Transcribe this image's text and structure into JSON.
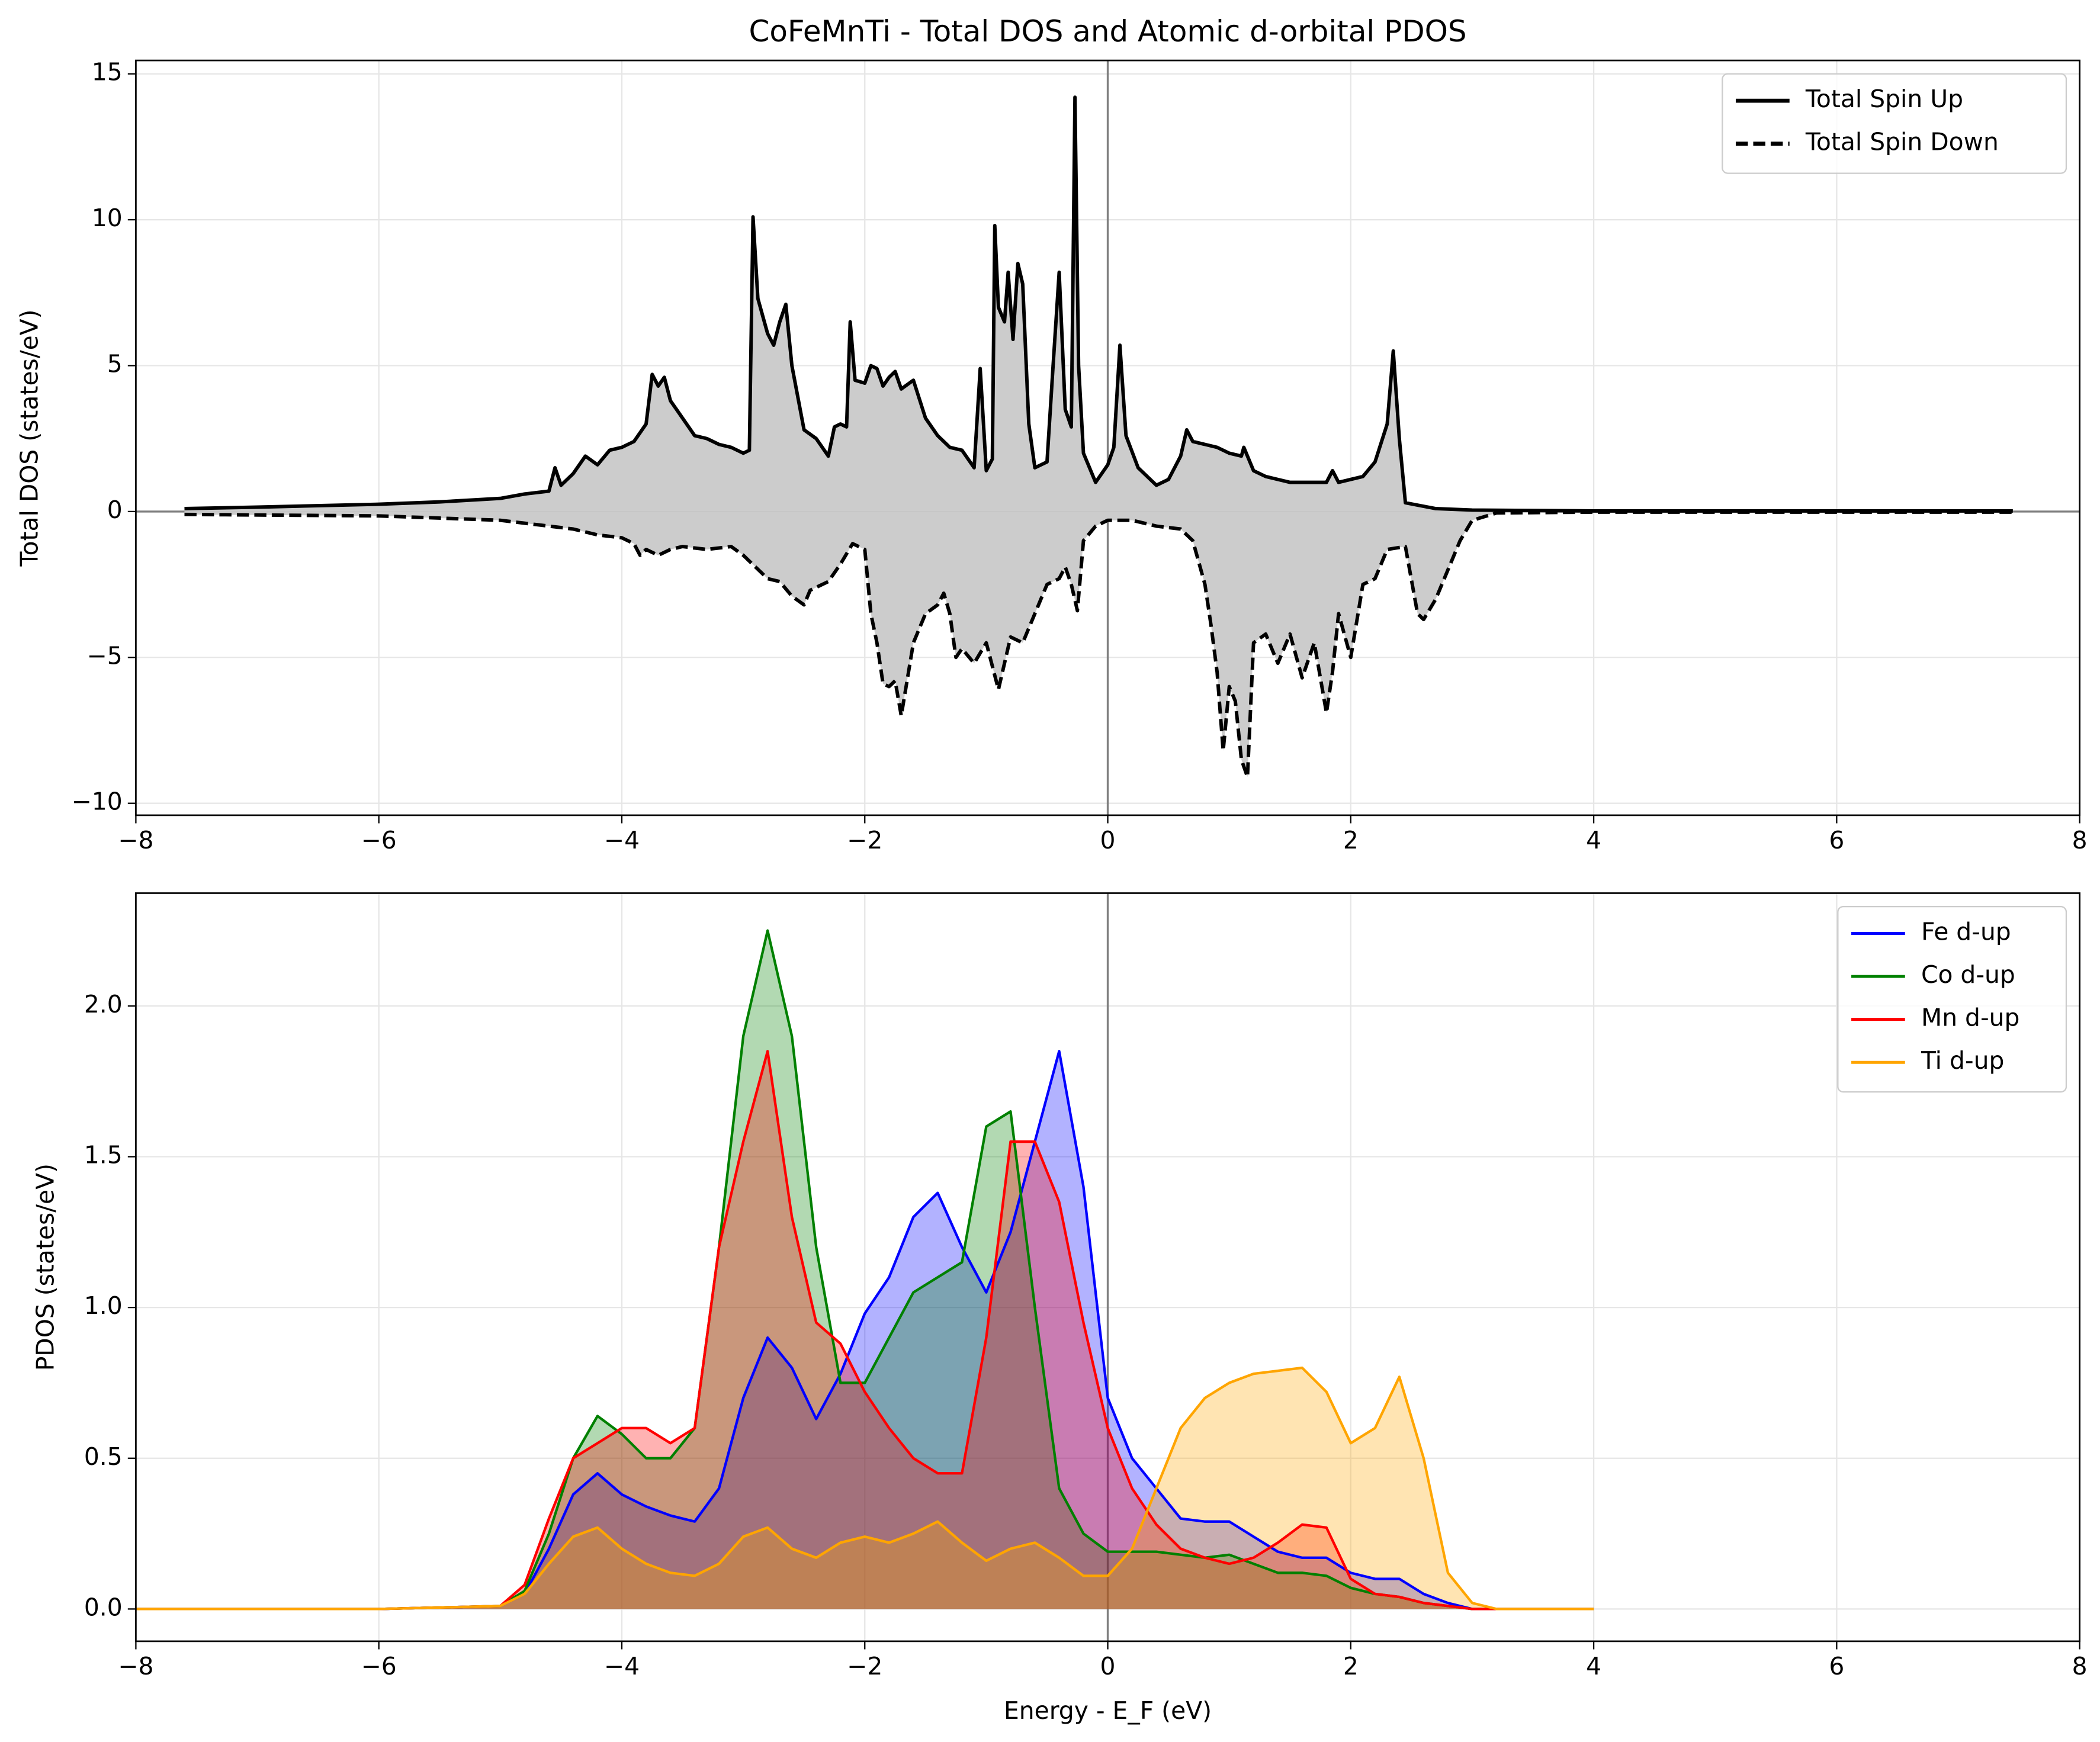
{
  "chart_data": [
    {
      "type": "line",
      "title": "CoFeMnTi - Total DOS and Atomic d-orbital PDOS",
      "ylabel": "Total DOS (states/eV)",
      "xlim": [
        -8,
        8
      ],
      "ylim": [
        -10.41,
        15.46
      ],
      "xticks": [
        {
          "value": -8,
          "label": "−8"
        },
        {
          "value": -6,
          "label": "−6"
        },
        {
          "value": -4,
          "label": "−4"
        },
        {
          "value": -2,
          "label": "−2"
        },
        0,
        2,
        4,
        6,
        8
      ],
      "yticks": [
        {
          "value": -10,
          "label": "−10"
        },
        {
          "value": -5,
          "label": "−5"
        },
        0,
        5,
        10,
        15
      ],
      "grid": true,
      "legend": "upper right",
      "axvline": 0,
      "axhline": 0,
      "fill": true,
      "fill_color": "#cccccc",
      "series": [
        {
          "name": "Total Spin Up",
          "color": "#000000",
          "dashed": false,
          "x": [
            -7.6,
            -7,
            -6,
            -5.5,
            -5,
            -4.8,
            -4.6,
            -4.55,
            -4.5,
            -4.4,
            -4.3,
            -4.2,
            -4.1,
            -4.0,
            -3.9,
            -3.8,
            -3.75,
            -3.7,
            -3.65,
            -3.6,
            -3.5,
            -3.4,
            -3.3,
            -3.2,
            -3.1,
            -3.0,
            -2.95,
            -2.92,
            -2.88,
            -2.8,
            -2.75,
            -2.7,
            -2.65,
            -2.6,
            -2.5,
            -2.4,
            -2.3,
            -2.25,
            -2.2,
            -2.15,
            -2.12,
            -2.08,
            -2.0,
            -1.95,
            -1.9,
            -1.85,
            -1.8,
            -1.75,
            -1.7,
            -1.6,
            -1.5,
            -1.4,
            -1.3,
            -1.2,
            -1.1,
            -1.05,
            -1.0,
            -0.95,
            -0.93,
            -0.9,
            -0.85,
            -0.82,
            -0.78,
            -0.74,
            -0.7,
            -0.65,
            -0.6,
            -0.5,
            -0.45,
            -0.4,
            -0.35,
            -0.3,
            -0.27,
            -0.24,
            -0.2,
            -0.1,
            0,
            0.05,
            0.1,
            0.15,
            0.25,
            0.4,
            0.5,
            0.6,
            0.65,
            0.7,
            0.8,
            0.9,
            1.0,
            1.1,
            1.12,
            1.2,
            1.3,
            1.5,
            1.7,
            1.8,
            1.85,
            1.9,
            2.1,
            2.2,
            2.3,
            2.35,
            2.4,
            2.45,
            2.7,
            3.0,
            4,
            7.45
          ],
          "values": [
            0.1,
            0.15,
            0.25,
            0.33,
            0.45,
            0.6,
            0.7,
            1.5,
            0.9,
            1.3,
            1.9,
            1.6,
            2.1,
            2.2,
            2.4,
            3.0,
            4.7,
            4.3,
            4.6,
            3.8,
            3.2,
            2.6,
            2.5,
            2.3,
            2.2,
            2.0,
            2.1,
            10.1,
            7.3,
            6.1,
            5.7,
            6.5,
            7.1,
            5.0,
            2.8,
            2.5,
            1.9,
            2.9,
            3.0,
            2.9,
            6.5,
            4.5,
            4.4,
            5.0,
            4.9,
            4.3,
            4.6,
            4.8,
            4.2,
            4.5,
            3.2,
            2.6,
            2.2,
            2.1,
            1.5,
            4.9,
            1.4,
            1.8,
            9.8,
            7.0,
            6.5,
            8.2,
            5.9,
            8.5,
            7.8,
            3.0,
            1.5,
            1.7,
            5.0,
            8.2,
            3.5,
            2.9,
            14.2,
            5.0,
            2.0,
            1.0,
            1.6,
            2.2,
            5.7,
            2.6,
            1.5,
            0.9,
            1.1,
            1.9,
            2.8,
            2.4,
            2.3,
            2.2,
            2.0,
            1.9,
            2.2,
            1.4,
            1.2,
            1.0,
            1.0,
            1.0,
            1.4,
            1.0,
            1.2,
            1.7,
            3.0,
            5.5,
            2.5,
            0.3,
            0.1,
            0.05,
            0.02,
            0.02
          ]
        },
        {
          "name": "Total Spin Down",
          "color": "#000000",
          "dashed": true,
          "x": [
            -7.6,
            -6,
            -5,
            -4.7,
            -4.4,
            -4.2,
            -4.0,
            -3.9,
            -3.85,
            -3.8,
            -3.7,
            -3.6,
            -3.5,
            -3.3,
            -3.1,
            -3.0,
            -2.9,
            -2.8,
            -2.7,
            -2.6,
            -2.5,
            -2.45,
            -2.3,
            -2.2,
            -2.1,
            -2.0,
            -1.95,
            -1.9,
            -1.85,
            -1.8,
            -1.75,
            -1.7,
            -1.6,
            -1.5,
            -1.4,
            -1.35,
            -1.3,
            -1.25,
            -1.2,
            -1.1,
            -1.0,
            -0.9,
            -0.8,
            -0.7,
            -0.6,
            -0.5,
            -0.4,
            -0.35,
            -0.3,
            -0.25,
            -0.2,
            -0.1,
            0,
            0.2,
            0.4,
            0.6,
            0.7,
            0.8,
            0.85,
            0.9,
            0.95,
            1.0,
            1.05,
            1.1,
            1.15,
            1.2,
            1.3,
            1.4,
            1.5,
            1.6,
            1.7,
            1.8,
            1.85,
            1.9,
            2.0,
            2.1,
            2.2,
            2.3,
            2.45,
            2.55,
            2.6,
            2.7,
            2.8,
            2.9,
            3.0,
            3.2,
            4,
            7.45
          ],
          "values": [
            -0.1,
            -0.15,
            -0.3,
            -0.45,
            -0.6,
            -0.8,
            -0.9,
            -1.1,
            -1.5,
            -1.3,
            -1.5,
            -1.3,
            -1.2,
            -1.3,
            -1.2,
            -1.5,
            -1.9,
            -2.3,
            -2.4,
            -2.9,
            -3.2,
            -2.7,
            -2.4,
            -1.8,
            -1.1,
            -1.3,
            -3.5,
            -4.5,
            -5.9,
            -6.0,
            -5.8,
            -7.0,
            -4.5,
            -3.5,
            -3.2,
            -2.8,
            -3.5,
            -5.0,
            -4.7,
            -5.2,
            -4.5,
            -6.1,
            -4.3,
            -4.5,
            -3.5,
            -2.5,
            -2.3,
            -1.9,
            -2.5,
            -3.4,
            -1.0,
            -0.5,
            -0.3,
            -0.3,
            -0.5,
            -0.6,
            -1.0,
            -2.5,
            -3.9,
            -5.5,
            -8.2,
            -6.0,
            -6.5,
            -8.5,
            -9.1,
            -4.5,
            -4.2,
            -5.2,
            -4.2,
            -5.7,
            -4.5,
            -6.9,
            -5.5,
            -3.5,
            -5.0,
            -2.5,
            -2.3,
            -1.3,
            -1.2,
            -3.5,
            -3.7,
            -3.0,
            -2.0,
            -1.0,
            -0.3,
            -0.05,
            -0.02,
            -0.02
          ]
        }
      ]
    },
    {
      "type": "line",
      "xlabel": "Energy - E_F (eV)",
      "ylabel": "PDOS (states/eV)",
      "xlim": [
        -8,
        8
      ],
      "ylim": [
        -0.107,
        2.374
      ],
      "xticks": [
        {
          "value": -8,
          "label": "−8"
        },
        {
          "value": -6,
          "label": "−6"
        },
        {
          "value": -4,
          "label": "−4"
        },
        {
          "value": -2,
          "label": "−2"
        },
        0,
        2,
        4,
        6,
        8
      ],
      "yticks": [
        {
          "value": 0,
          "label": "0.0"
        },
        {
          "value": 0.5,
          "label": "0.5"
        },
        {
          "value": 1,
          "label": "1.0"
        },
        {
          "value": 1.5,
          "label": "1.5"
        },
        {
          "value": 2,
          "label": "2.0"
        }
      ],
      "grid": true,
      "legend": "upper right",
      "axvline": 0,
      "fill": true,
      "fill_opacity": 0.3,
      "x": [
        -8,
        -6,
        -5,
        -4.8,
        -4.6,
        -4.4,
        -4.2,
        -4.0,
        -3.8,
        -3.6,
        -3.4,
        -3.2,
        -3.0,
        -2.8,
        -2.6,
        -2.4,
        -2.2,
        -2.0,
        -1.8,
        -1.6,
        -1.4,
        -1.2,
        -1.0,
        -0.8,
        -0.6,
        -0.4,
        -0.2,
        0,
        0.2,
        0.4,
        0.6,
        0.8,
        1.0,
        1.2,
        1.4,
        1.6,
        1.8,
        2.0,
        2.2,
        2.4,
        2.6,
        2.8,
        3.0,
        3.2,
        3.4,
        4
      ],
      "series": [
        {
          "name": "Fe d-up",
          "color": "#0000ff",
          "values": [
            0,
            0,
            0.01,
            0.05,
            0.2,
            0.38,
            0.45,
            0.38,
            0.34,
            0.31,
            0.29,
            0.4,
            0.7,
            0.9,
            0.8,
            0.63,
            0.78,
            0.98,
            1.1,
            1.3,
            1.38,
            1.2,
            1.05,
            1.25,
            1.55,
            1.85,
            1.4,
            0.7,
            0.5,
            0.4,
            0.3,
            0.29,
            0.29,
            0.24,
            0.19,
            0.17,
            0.17,
            0.12,
            0.1,
            0.1,
            0.05,
            0.02,
            0,
            0,
            0,
            0
          ]
        },
        {
          "name": "Co d-up",
          "color": "#008000",
          "values": [
            0,
            0,
            0.01,
            0.06,
            0.25,
            0.5,
            0.64,
            0.58,
            0.5,
            0.5,
            0.6,
            1.2,
            1.9,
            2.25,
            1.9,
            1.2,
            0.75,
            0.75,
            0.9,
            1.05,
            1.1,
            1.15,
            1.6,
            1.65,
            1.0,
            0.4,
            0.25,
            0.19,
            0.19,
            0.19,
            0.18,
            0.17,
            0.18,
            0.15,
            0.12,
            0.12,
            0.11,
            0.07,
            0.05,
            0.04,
            0.02,
            0.01,
            0,
            0,
            0,
            0
          ]
        },
        {
          "name": "Mn d-up",
          "color": "#ff0000",
          "values": [
            0,
            0,
            0.01,
            0.08,
            0.3,
            0.5,
            0.55,
            0.6,
            0.6,
            0.55,
            0.6,
            1.2,
            1.55,
            1.85,
            1.3,
            0.95,
            0.88,
            0.72,
            0.6,
            0.5,
            0.45,
            0.45,
            0.9,
            1.55,
            1.55,
            1.35,
            0.95,
            0.6,
            0.4,
            0.28,
            0.2,
            0.17,
            0.15,
            0.17,
            0.22,
            0.28,
            0.27,
            0.1,
            0.05,
            0.04,
            0.02,
            0.01,
            0,
            0,
            0,
            0
          ]
        },
        {
          "name": "Ti d-up",
          "color": "#ffa500",
          "values": [
            0,
            0,
            0.01,
            0.05,
            0.15,
            0.24,
            0.27,
            0.2,
            0.15,
            0.12,
            0.11,
            0.15,
            0.24,
            0.27,
            0.2,
            0.17,
            0.22,
            0.24,
            0.22,
            0.25,
            0.29,
            0.22,
            0.16,
            0.2,
            0.22,
            0.17,
            0.11,
            0.11,
            0.2,
            0.4,
            0.6,
            0.7,
            0.75,
            0.78,
            0.79,
            0.8,
            0.72,
            0.55,
            0.6,
            0.77,
            0.5,
            0.12,
            0.02,
            0,
            0,
            0
          ]
        }
      ]
    }
  ]
}
